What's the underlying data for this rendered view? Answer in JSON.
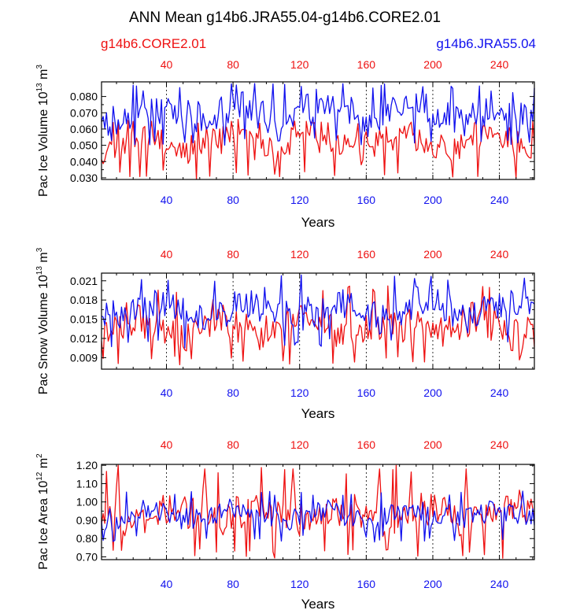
{
  "title": "ANN Mean g14b6.JRA55.04-g14b6.CORE2.01",
  "legend": {
    "left_label": "g14b6.CORE2.01",
    "right_label": "g14b6.JRA55.04"
  },
  "colors": {
    "series_red": "#ee1111",
    "series_blue": "#1111ee",
    "axis": "#000000",
    "gridline": "#000000"
  },
  "chart_data": [
    {
      "type": "line",
      "ylabel": "Pac Ice Volume",
      "yunit_base": "10",
      "yunit_exp": "13",
      "yunit_tail": "m",
      "yunit_tail_exp": "3",
      "xlabel": "Years",
      "xlim": [
        1,
        261
      ],
      "ylim": [
        0.029,
        0.089
      ],
      "yticks": [
        0.03,
        0.04,
        0.05,
        0.06,
        0.07,
        0.08
      ],
      "ytick_labels": [
        "0.030",
        "0.040",
        "0.050",
        "0.060",
        "0.070",
        "0.080"
      ],
      "xticks": [
        40,
        80,
        120,
        160,
        200,
        240
      ],
      "xtick_labels": [
        "40",
        "80",
        "120",
        "160",
        "200",
        "240"
      ],
      "top_xtick_labels": [
        "40",
        "80",
        "120",
        "160",
        "200",
        "240"
      ],
      "vertical_dashed_gridlines_at": [
        40,
        80,
        120,
        160,
        200,
        240
      ],
      "series": [
        {
          "name": "g14b6.CORE2.01",
          "color": "#ee1111",
          "mean": 0.052,
          "amp": 0.0075,
          "min": 0.029,
          "max": 0.066,
          "period": 52,
          "seed": 11
        },
        {
          "name": "g14b6.JRA55.04",
          "color": "#1111ee",
          "mean": 0.07,
          "amp": 0.008,
          "min": 0.05,
          "max": 0.088,
          "period": 52,
          "seed": 23
        }
      ]
    },
    {
      "type": "line",
      "ylabel": "Pac Snow Volume",
      "yunit_base": "10",
      "yunit_exp": "13",
      "yunit_tail": "m",
      "yunit_tail_exp": "3",
      "xlabel": "Years",
      "xlim": [
        1,
        261
      ],
      "ylim": [
        0.0072,
        0.0222
      ],
      "yticks": [
        0.009,
        0.012,
        0.015,
        0.018,
        0.021
      ],
      "ytick_labels": [
        "0.009",
        "0.012",
        "0.015",
        "0.018",
        "0.021"
      ],
      "xticks": [
        40,
        80,
        120,
        160,
        200,
        240
      ],
      "xtick_labels": [
        "40",
        "80",
        "120",
        "160",
        "200",
        "240"
      ],
      "top_xtick_labels": [
        "40",
        "80",
        "120",
        "160",
        "200",
        "240"
      ],
      "vertical_dashed_gridlines_at": [
        40,
        80,
        120,
        160,
        200,
        240
      ],
      "series": [
        {
          "name": "g14b6.CORE2.01",
          "color": "#ee1111",
          "mean": 0.0138,
          "amp": 0.0022,
          "min": 0.0078,
          "max": 0.0205,
          "period": 52,
          "seed": 37
        },
        {
          "name": "g14b6.JRA55.04",
          "color": "#1111ee",
          "mean": 0.0165,
          "amp": 0.0021,
          "min": 0.0105,
          "max": 0.0219,
          "period": 52,
          "seed": 41
        }
      ]
    },
    {
      "type": "line",
      "ylabel": "Pac Ice Area",
      "yunit_base": "10",
      "yunit_exp": "12",
      "yunit_tail": "m",
      "yunit_tail_exp": "2",
      "xlabel": "Years",
      "xlim": [
        1,
        261
      ],
      "ylim": [
        0.685,
        1.205
      ],
      "yticks": [
        0.7,
        0.8,
        0.9,
        1.0,
        1.1,
        1.2
      ],
      "ytick_labels": [
        "0.70",
        "0.80",
        "0.90",
        "1.00",
        "1.10",
        "1.20"
      ],
      "xticks": [
        40,
        80,
        120,
        160,
        200,
        240
      ],
      "xtick_labels": [
        "40",
        "80",
        "120",
        "160",
        "200",
        "240"
      ],
      "top_xtick_labels": [
        "40",
        "80",
        "120",
        "160",
        "200",
        "240"
      ],
      "vertical_dashed_gridlines_at": [
        40,
        80,
        120,
        160,
        200,
        240
      ],
      "series": [
        {
          "name": "g14b6.CORE2.01",
          "color": "#ee1111",
          "mean": 0.93,
          "amp": 0.07,
          "min": 0.69,
          "max": 1.2,
          "period": 52,
          "seed": 53,
          "spikes": [
            [
              11,
              1.2
            ],
            [
              63,
              1.18
            ],
            [
              116,
              1.18
            ],
            [
              168,
              1.18
            ],
            [
              220,
              1.18
            ]
          ]
        },
        {
          "name": "g14b6.JRA55.04",
          "color": "#1111ee",
          "mean": 0.93,
          "amp": 0.045,
          "min": 0.78,
          "max": 1.06,
          "period": 52,
          "seed": 67
        }
      ]
    }
  ]
}
